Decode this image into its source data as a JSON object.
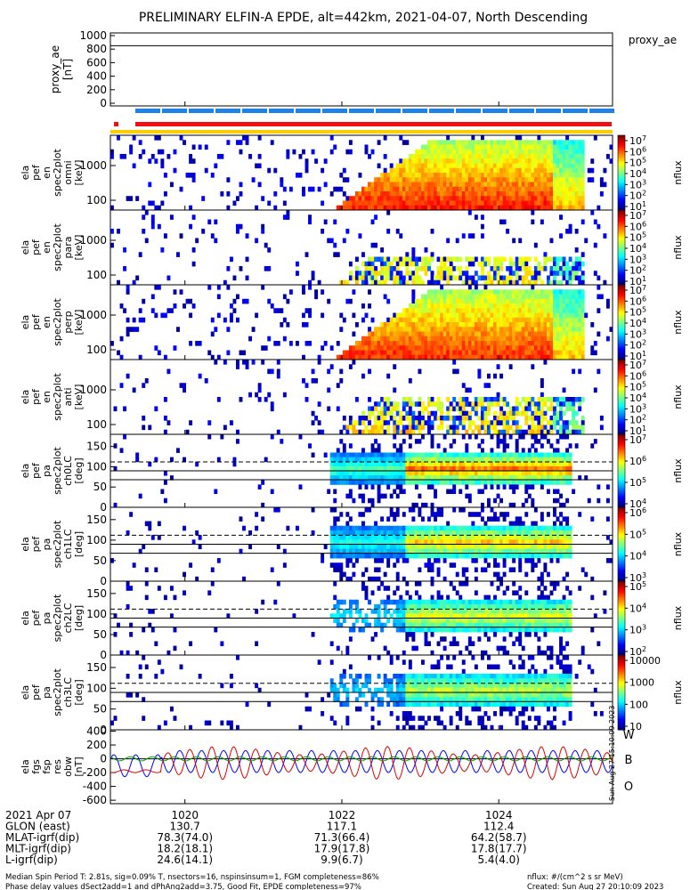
{
  "title": "PRELIMINARY ELFIN-A EPDE, alt=442km, 2021-04-07, North Descending",
  "colors": {
    "B": "#00aa00",
    "W": "#dd0000",
    "O": "#0000ff",
    "blue_bar": "#1e82e6",
    "red_bar": "#ee1111",
    "yellow_bar": "#ffcc00"
  },
  "chart_data": [
    {
      "type": "line",
      "id": "proxy_ae",
      "ylabel": [
        "proxy_ae",
        "[nT]"
      ],
      "legend": "proxy_ae",
      "yticks": [
        "1000",
        "800",
        "600",
        "400",
        "200",
        "0"
      ],
      "ylim": [
        0,
        1000
      ],
      "series": [
        {
          "name": "proxy_ae",
          "x": [
            1019.0,
            1025.5
          ],
          "values": [
            850,
            850
          ]
        }
      ]
    },
    {
      "type": "heatmap",
      "id": "pef_en_omni",
      "ylabel": [
        "ela",
        "pef",
        "en",
        "spec2plot",
        "omni",
        "[keV]"
      ],
      "yticks": [
        "1000",
        "100"
      ],
      "scale": "log",
      "colorbar": {
        "label": "nflux",
        "ticks": [
          "10^7",
          "10^6",
          "10^5",
          "10^4",
          "10^3",
          "10^2",
          "10^1"
        ]
      }
    },
    {
      "type": "heatmap",
      "id": "pef_en_para",
      "ylabel": [
        "ela",
        "pef",
        "en",
        "spec2plot",
        "para",
        "[keV]"
      ],
      "yticks": [
        "1000",
        "100"
      ],
      "scale": "log",
      "colorbar": {
        "label": "nflux",
        "ticks": [
          "10^7",
          "10^6",
          "10^5",
          "10^4",
          "10^3",
          "10^2",
          "10^1"
        ]
      }
    },
    {
      "type": "heatmap",
      "id": "pef_en_perp",
      "ylabel": [
        "ela",
        "pef",
        "en",
        "spec2plot",
        "perp",
        "[keV]"
      ],
      "yticks": [
        "1000",
        "100"
      ],
      "scale": "log",
      "colorbar": {
        "label": "nflux",
        "ticks": [
          "10^7",
          "10^6",
          "10^5",
          "10^4",
          "10^3",
          "10^2",
          "10^1"
        ]
      }
    },
    {
      "type": "heatmap",
      "id": "pef_en_anti",
      "ylabel": [
        "ela",
        "pef",
        "en",
        "spec2plot",
        "anti",
        "[keV]"
      ],
      "yticks": [
        "1000",
        "100"
      ],
      "scale": "log",
      "colorbar": {
        "label": "nflux",
        "ticks": [
          "10^7",
          "10^6",
          "10^5",
          "10^4",
          "10^3",
          "10^2",
          "10^1"
        ]
      }
    },
    {
      "type": "heatmap",
      "id": "pef_pa_ch0LC",
      "ylabel": [
        "ela",
        "pef",
        "pa",
        "spec2plot",
        "ch0LC",
        "[deg]"
      ],
      "yticks": [
        "150",
        "100",
        "50",
        "0"
      ],
      "ylim": [
        0,
        180
      ],
      "colorbar": {
        "label": "nflux",
        "ticks": [
          "10^7",
          "10^6",
          "10^5",
          "10^4"
        ]
      }
    },
    {
      "type": "heatmap",
      "id": "pef_pa_ch1LC",
      "ylabel": [
        "ela",
        "pef",
        "pa",
        "spec2plot",
        "ch1LC",
        "[deg]"
      ],
      "yticks": [
        "150",
        "100",
        "50",
        "0"
      ],
      "ylim": [
        0,
        180
      ],
      "colorbar": {
        "label": "nflux",
        "ticks": [
          "10^6",
          "10^5",
          "10^4",
          "10^3"
        ]
      }
    },
    {
      "type": "heatmap",
      "id": "pef_pa_ch2LC",
      "ylabel": [
        "ela",
        "pef",
        "pa",
        "spec2plot",
        "ch2LC",
        "[deg]"
      ],
      "yticks": [
        "150",
        "100",
        "50",
        "0"
      ],
      "ylim": [
        0,
        180
      ],
      "colorbar": {
        "label": "nflux",
        "ticks": [
          "10^5",
          "10^4",
          "10^3",
          "10^2"
        ]
      }
    },
    {
      "type": "heatmap",
      "id": "pef_pa_ch3LC",
      "ylabel": [
        "ela",
        "pef",
        "pa",
        "spec2plot",
        "ch3LC",
        "[deg]"
      ],
      "yticks": [
        "150",
        "100",
        "50",
        "0"
      ],
      "ylim": [
        0,
        180
      ],
      "colorbar": {
        "label": "nflux",
        "ticks": [
          "10000",
          "1000",
          "100",
          "10"
        ]
      }
    },
    {
      "type": "line",
      "id": "fgs_fsp",
      "ylabel": [
        "ela",
        "fgs",
        "fsp",
        "res",
        "obw",
        "[nT]"
      ],
      "yticks": [
        "400",
        "200",
        "0",
        "-200",
        "-400",
        "-600"
      ],
      "ylim": [
        -650,
        420
      ],
      "legend_labels": [
        "W",
        "B",
        "O"
      ]
    }
  ],
  "xaxis": {
    "tick_labels": [
      "1020",
      "1022",
      "1024"
    ],
    "rows": [
      {
        "label": "2021 Apr 07",
        "values": [
          "1020",
          "1022",
          "1024"
        ]
      },
      {
        "label": "GLON (east)",
        "values": [
          "130.7",
          "117.1",
          "112.4"
        ]
      },
      {
        "label": "MLAT-igrf(dip)",
        "values": [
          "78.3(74.0)",
          "71.3(66.4)",
          "64.2(58.7)"
        ]
      },
      {
        "label": "MLT-igrf(dip)",
        "values": [
          "18.2(18.1)",
          "17.9(17.8)",
          "17.8(17.7)"
        ]
      },
      {
        "label": "L-igrf(dip)",
        "values": [
          "24.6(14.1)",
          "9.9(6.7)",
          "5.4(4.0)"
        ]
      }
    ]
  },
  "footer": {
    "line1": "Median Spin Period T: 2.81s, sig=0.09% T, nsectors=16, nspinsinsum=1, FGM completeness=86%",
    "line2": "Phase delay values dSect2add=1 and dPhAng2add=3.75, Good Fit, EPDE completeness=97%",
    "units": "nflux: #/(cm^2 s sr MeV)",
    "created": "Created: Sun Aug 27 20:10:09 2023",
    "side_stamp": "Sun Aug 27 15:10:09 2023"
  }
}
